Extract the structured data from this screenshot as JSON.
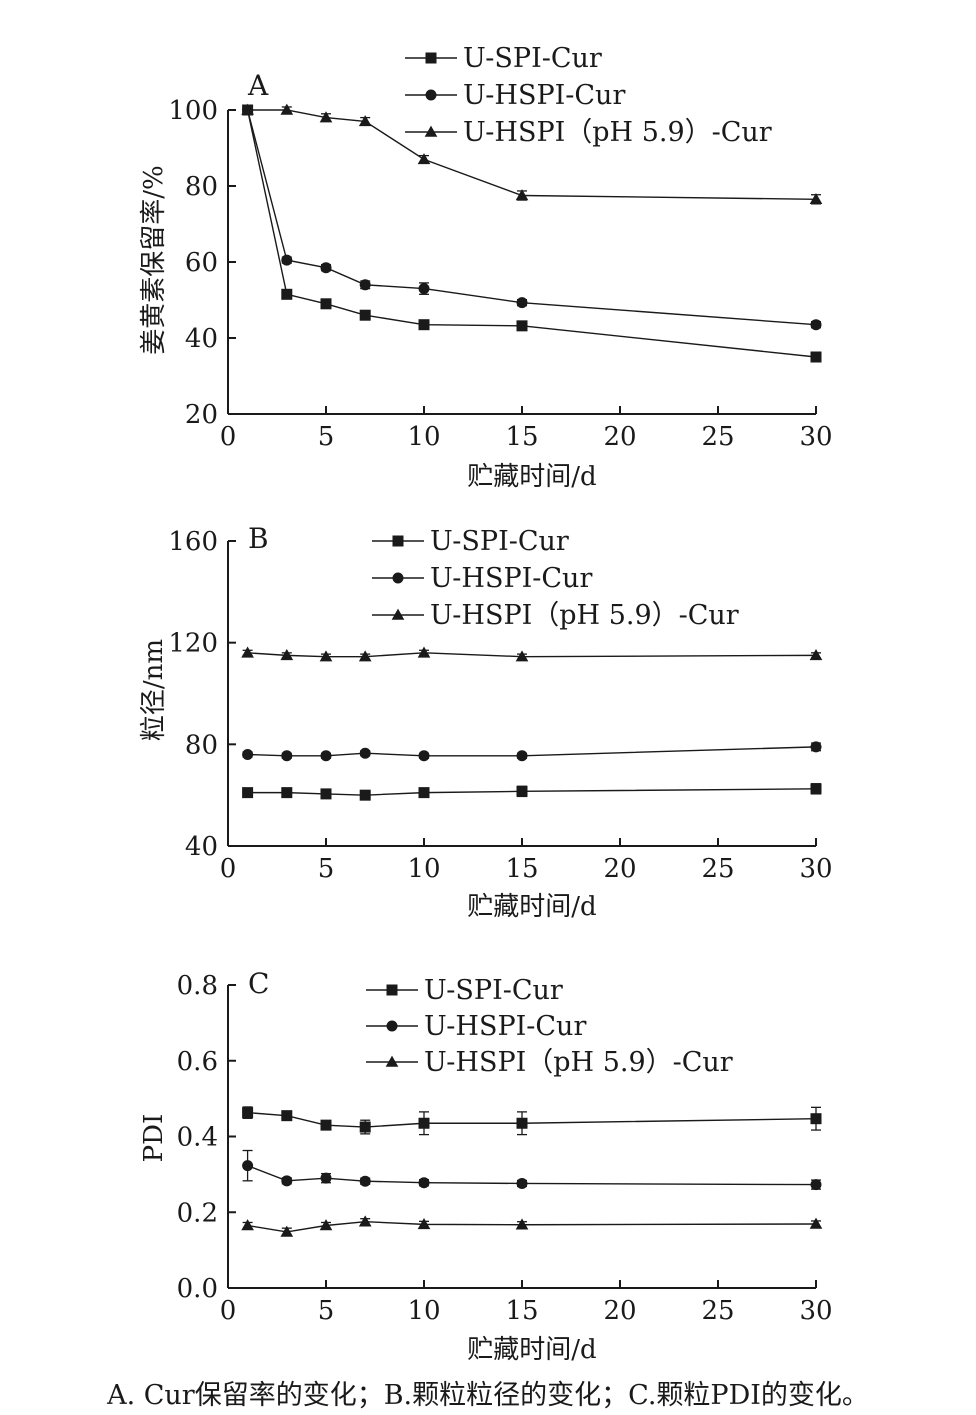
{
  "caption": "A. Cur保留率的变化；B.颗粒粒径的变化；C.颗粒PDI的变化。",
  "chart_data": [
    {
      "type": "line",
      "panel_label": "A",
      "xlabel": "贮藏时间/d",
      "ylabel": "姜黄素保留率/%",
      "xlim": [
        0,
        30
      ],
      "ylim": [
        20,
        100
      ],
      "xticks": [
        0,
        5,
        10,
        15,
        20,
        25,
        30
      ],
      "yticks": [
        20,
        40,
        60,
        80,
        100
      ],
      "x": [
        1,
        3,
        5,
        7,
        10,
        15,
        30
      ],
      "legend_position": "top-right",
      "series": [
        {
          "name": "U-SPI-Cur",
          "marker": "square",
          "values": [
            100,
            51.5,
            49,
            46,
            43.5,
            43.2,
            35
          ],
          "errors": [
            0,
            1,
            1,
            1,
            1,
            0.8,
            1
          ]
        },
        {
          "name": "U-HSPI-Cur",
          "marker": "circle",
          "values": [
            100,
            60.5,
            58.5,
            54,
            53,
            49.3,
            43.5
          ],
          "errors": [
            0,
            0.8,
            0.8,
            1,
            1.5,
            0.8,
            0.8
          ]
        },
        {
          "name": "U-HSPI（pH 5.9）-Cur",
          "marker": "triangle",
          "values": [
            100,
            100,
            98,
            97,
            87,
            77.5,
            76.5
          ],
          "errors": [
            0,
            0.8,
            1,
            1,
            1,
            1.2,
            1.2
          ]
        }
      ]
    },
    {
      "type": "line",
      "panel_label": "B",
      "xlabel": "贮藏时间/d",
      "ylabel": "粒径/nm",
      "xlim": [
        0,
        30
      ],
      "ylim": [
        40,
        160
      ],
      "xticks": [
        0,
        5,
        10,
        15,
        20,
        25,
        30
      ],
      "yticks": [
        40,
        80,
        120,
        160
      ],
      "x": [
        1,
        3,
        5,
        7,
        10,
        15,
        30
      ],
      "legend_position": "top-right",
      "series": [
        {
          "name": "U-SPI-Cur",
          "marker": "square",
          "values": [
            61,
            61,
            60.5,
            60,
            61,
            61.5,
            62.5
          ],
          "errors": [
            1,
            1,
            1,
            1,
            1,
            2,
            2
          ]
        },
        {
          "name": "U-HSPI-Cur",
          "marker": "circle",
          "values": [
            76,
            75.5,
            75.5,
            76.5,
            75.5,
            75.5,
            79
          ],
          "errors": [
            1,
            1,
            1,
            1,
            1,
            1,
            1.5
          ]
        },
        {
          "name": "U-HSPI（pH 5.9）-Cur",
          "marker": "triangle",
          "values": [
            116,
            115,
            114.5,
            114.5,
            116,
            114.5,
            115
          ],
          "errors": [
            1,
            1,
            1,
            1,
            1,
            1,
            1
          ]
        }
      ]
    },
    {
      "type": "line",
      "panel_label": "C",
      "xlabel": "贮藏时间/d",
      "ylabel": "PDI",
      "xlim": [
        0,
        30
      ],
      "ylim": [
        0.0,
        0.8
      ],
      "xticks": [
        0,
        5,
        10,
        15,
        20,
        25,
        30
      ],
      "yticks": [
        "0.0",
        "0.2",
        "0.4",
        "0.6",
        "0.8"
      ],
      "x": [
        1,
        3,
        5,
        7,
        10,
        15,
        30
      ],
      "legend_position": "top-right",
      "series": [
        {
          "name": "U-SPI-Cur",
          "marker": "square",
          "values": [
            0.463,
            0.455,
            0.43,
            0.425,
            0.435,
            0.435,
            0.447
          ],
          "errors": [
            0.015,
            0.01,
            0.008,
            0.018,
            0.03,
            0.03,
            0.03
          ]
        },
        {
          "name": "U-HSPI-Cur",
          "marker": "circle",
          "values": [
            0.323,
            0.283,
            0.29,
            0.282,
            0.278,
            0.276,
            0.273
          ],
          "errors": [
            0.04,
            0.008,
            0.012,
            0.008,
            0.008,
            0.008,
            0.012
          ]
        },
        {
          "name": "U-HSPI（pH 5.9）-Cur",
          "marker": "triangle",
          "values": [
            0.165,
            0.148,
            0.165,
            0.175,
            0.168,
            0.167,
            0.169
          ],
          "errors": [
            0.008,
            0.01,
            0.008,
            0.008,
            0.008,
            0.008,
            0.008
          ]
        }
      ]
    }
  ]
}
